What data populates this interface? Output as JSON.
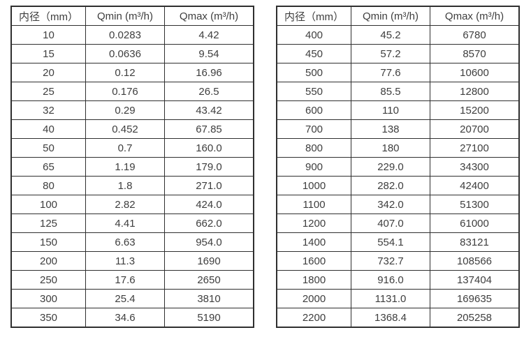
{
  "page": {
    "background_color": "#ffffff",
    "text_color": "#3e3e3e",
    "border_color": "#2f2f2f"
  },
  "chart_data": [
    {
      "type": "table",
      "title": "",
      "columns": [
        "内径（mm）",
        "Qmin (m³/h)",
        "Qmax (m³/h)"
      ],
      "rows": [
        [
          "10",
          "0.0283",
          "4.42"
        ],
        [
          "15",
          "0.0636",
          "9.54"
        ],
        [
          "20",
          "0.12",
          "16.96"
        ],
        [
          "25",
          "0.176",
          "26.5"
        ],
        [
          "32",
          "0.29",
          "43.42"
        ],
        [
          "40",
          "0.452",
          "67.85"
        ],
        [
          "50",
          "0.7",
          "160.0"
        ],
        [
          "65",
          "1.19",
          "179.0"
        ],
        [
          "80",
          "1.8",
          "271.0"
        ],
        [
          "100",
          "2.82",
          "424.0"
        ],
        [
          "125",
          "4.41",
          "662.0"
        ],
        [
          "150",
          "6.63",
          "954.0"
        ],
        [
          "200",
          "11.3",
          "1690"
        ],
        [
          "250",
          "17.6",
          "2650"
        ],
        [
          "300",
          "25.4",
          "3810"
        ],
        [
          "350",
          "34.6",
          "5190"
        ]
      ]
    },
    {
      "type": "table",
      "title": "",
      "columns": [
        "内径（mm）",
        "Qmin (m³/h)",
        "Qmax (m³/h)"
      ],
      "rows": [
        [
          "400",
          "45.2",
          "6780"
        ],
        [
          "450",
          "57.2",
          "8570"
        ],
        [
          "500",
          "77.6",
          "10600"
        ],
        [
          "550",
          "85.5",
          "12800"
        ],
        [
          "600",
          "110",
          "15200"
        ],
        [
          "700",
          "138",
          "20700"
        ],
        [
          "800",
          "180",
          "27100"
        ],
        [
          "900",
          "229.0",
          "34300"
        ],
        [
          "1000",
          "282.0",
          "42400"
        ],
        [
          "1100",
          "342.0",
          "51300"
        ],
        [
          "1200",
          "407.0",
          "61000"
        ],
        [
          "1400",
          "554.1",
          "83121"
        ],
        [
          "1600",
          "732.7",
          "108566"
        ],
        [
          "1800",
          "916.0",
          "137404"
        ],
        [
          "2000",
          "1131.0",
          "169635"
        ],
        [
          "2200",
          "1368.4",
          "205258"
        ]
      ]
    }
  ]
}
